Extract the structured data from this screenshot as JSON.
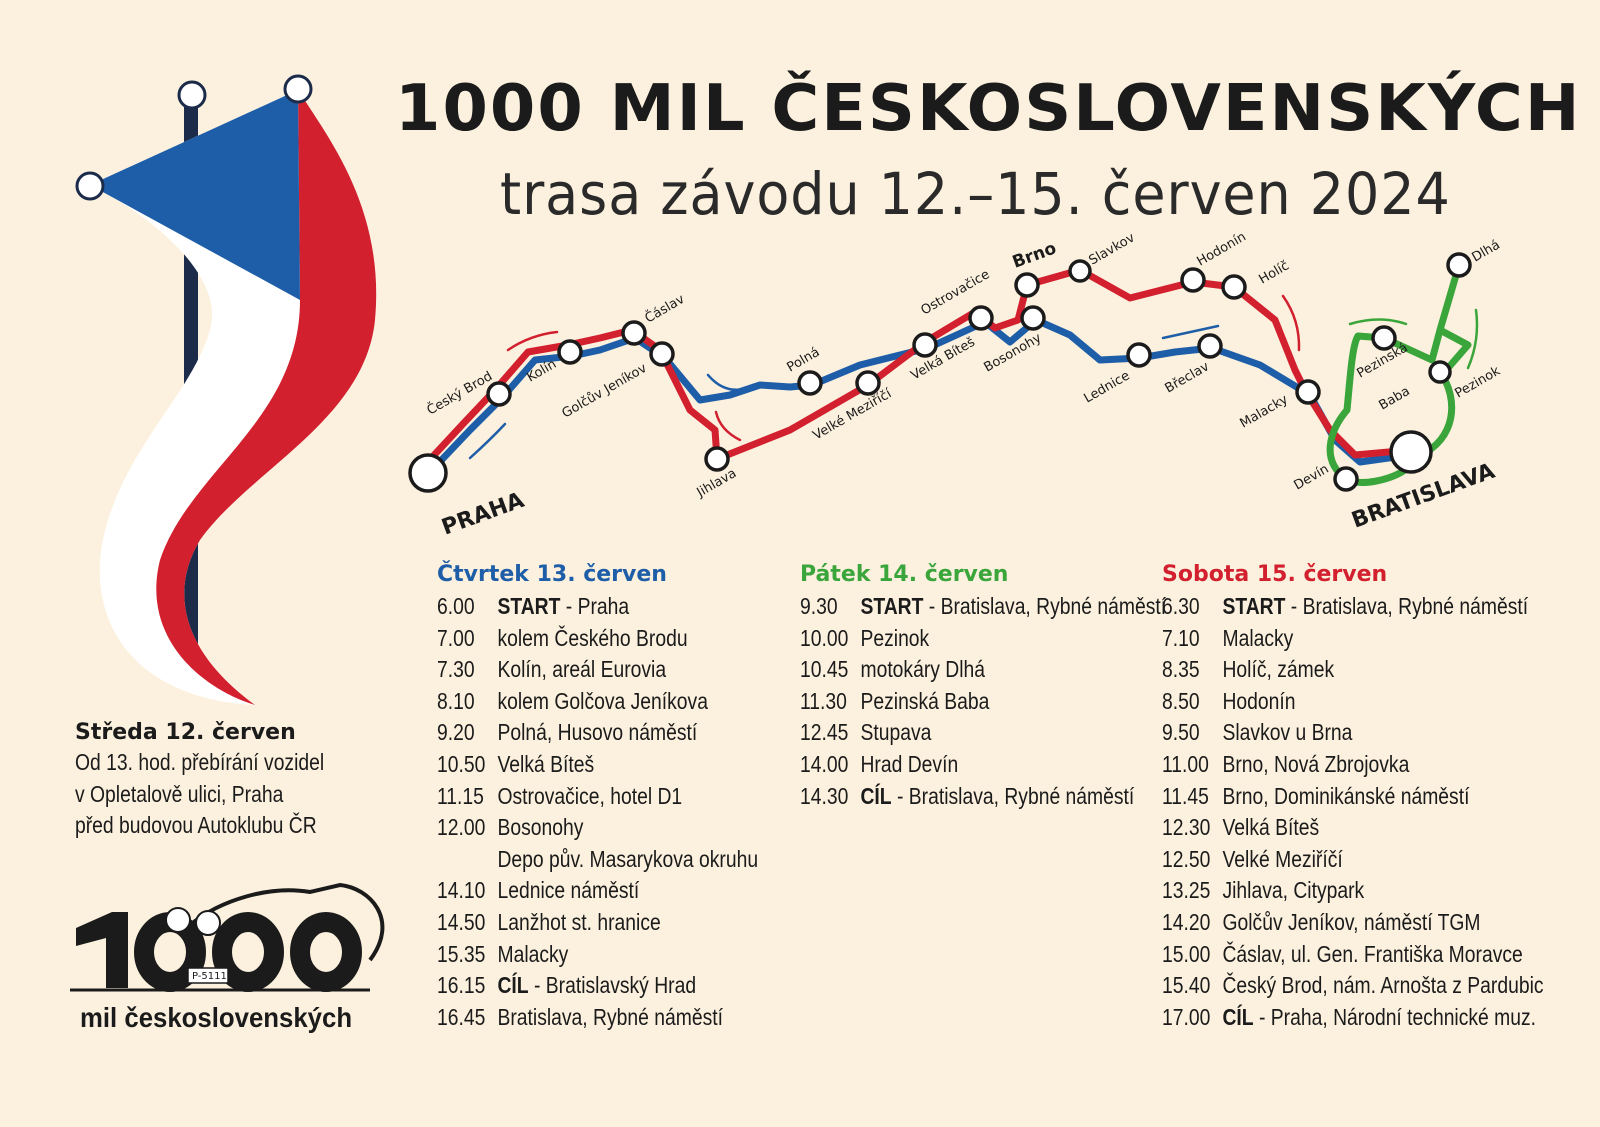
{
  "header": {
    "title": "1000 MIL ČESKOSLOVENSKÝCH",
    "subtitle": "trasa závodu 12.–15. červen 2024"
  },
  "colors": {
    "background": "#fcf1de",
    "day1_blue": "#1e5ea8",
    "day2_green": "#3aa53a",
    "day3_red": "#d2202f",
    "text": "#1b1b1b"
  },
  "map": {
    "stations": {
      "praha": "PRAHA",
      "cesky_brod": "Český Brod",
      "kolin": "Kolín",
      "caslav": "Čáslav",
      "golcuv": "Golčův Jeníkov",
      "polna": "Polná",
      "jihlava": "Jihlava",
      "velke_mezirici": "Velké Meziříčí",
      "velka_bites": "Velká Bíteš",
      "ostrovacice": "Ostrovačice",
      "brno": "Brno",
      "bosonohy": "Bosonohy",
      "slavkov": "Slavkov",
      "hodonin": "Hodonín",
      "holic": "Holíč",
      "lednice": "Lednice",
      "breclav": "Břeclav",
      "malacky": "Malacky",
      "bratislava": "BRATISLAVA",
      "devin": "Devín",
      "pezinska_baba_1": "Pezinská",
      "pezinska_baba_2": "Baba",
      "pezinok": "Pezinok",
      "dlha": "Dlhá"
    },
    "icons": [
      "flag-icon",
      "direction-arrow-icon",
      "station-icon"
    ]
  },
  "wednesday": {
    "heading": "Středa 12. červen",
    "lines": [
      "Od 13. hod. přebírání vozidel",
      "v Opletalově ulici, Praha",
      "před budovou Autoklubu ČR"
    ]
  },
  "schedule": [
    {
      "heading": "Čtvrtek 13. červen",
      "color": "#1e5ea8",
      "rows": [
        {
          "time": "6.00",
          "bold": "START",
          "text": " - Praha"
        },
        {
          "time": "7.00",
          "bold": "",
          "text": "kolem Českého Brodu"
        },
        {
          "time": "7.30",
          "bold": "",
          "text": "Kolín, areál Eurovia"
        },
        {
          "time": "8.10",
          "bold": "",
          "text": "kolem Golčova Jeníkova"
        },
        {
          "time": "9.20",
          "bold": "",
          "text": "Polná, Husovo náměstí"
        },
        {
          "time": "10.50",
          "bold": "",
          "text": "Velká Bíteš"
        },
        {
          "time": "11.15",
          "bold": "",
          "text": "Ostrovačice, hotel D1"
        },
        {
          "time": "12.00",
          "bold": "",
          "text": "Bosonohy"
        },
        {
          "time": "",
          "bold": "",
          "text": "Depo pův. Masarykova okruhu"
        },
        {
          "time": "14.10",
          "bold": "",
          "text": "Lednice náměstí"
        },
        {
          "time": "14.50",
          "bold": "",
          "text": "Lanžhot st. hranice"
        },
        {
          "time": "15.35",
          "bold": "",
          "text": "Malacky"
        },
        {
          "time": "16.15",
          "bold": "CÍL",
          "text": " - Bratislavský Hrad"
        },
        {
          "time": "16.45",
          "bold": "",
          "text": "Bratislava, Rybné náměstí"
        }
      ]
    },
    {
      "heading": "Pátek 14. červen",
      "color": "#3aa53a",
      "rows": [
        {
          "time": "9.30",
          "bold": "START",
          "text": " - Bratislava, Rybné náměstí"
        },
        {
          "time": "10.00",
          "bold": "",
          "text": "Pezinok"
        },
        {
          "time": "10.45",
          "bold": "",
          "text": "motokáry Dlhá"
        },
        {
          "time": "11.30",
          "bold": "",
          "text": "Pezinská Baba"
        },
        {
          "time": "12.45",
          "bold": "",
          "text": "Stupava"
        },
        {
          "time": "14.00",
          "bold": "",
          "text": "Hrad Devín"
        },
        {
          "time": "14.30",
          "bold": "CÍL",
          "text": " - Bratislava, Rybné náměstí"
        }
      ]
    },
    {
      "heading": "Sobota 15. červen",
      "color": "#d2202f",
      "rows": [
        {
          "time": "6.30",
          "bold": "START",
          "text": " - Bratislava, Rybné náměstí"
        },
        {
          "time": "7.10",
          "bold": "",
          "text": "Malacky"
        },
        {
          "time": "8.35",
          "bold": "",
          "text": "Holíč, zámek"
        },
        {
          "time": "8.50",
          "bold": "",
          "text": "Hodonín"
        },
        {
          "time": "9.50",
          "bold": "",
          "text": "Slavkov u Brna"
        },
        {
          "time": "11.00",
          "bold": "",
          "text": "Brno, Nová Zbrojovka"
        },
        {
          "time": "11.45",
          "bold": "",
          "text": "Brno, Dominikánské náměstí"
        },
        {
          "time": "12.30",
          "bold": "",
          "text": "Velká Bíteš"
        },
        {
          "time": "12.50",
          "bold": "",
          "text": "Velké Meziříčí"
        },
        {
          "time": "13.25",
          "bold": "",
          "text": "Jihlava, Citypark"
        },
        {
          "time": "14.20",
          "bold": "",
          "text": "Golčův Jeníkov, náměstí TGM"
        },
        {
          "time": "15.00",
          "bold": "",
          "text": "Čáslav, ul. Gen. Františka Moravce"
        },
        {
          "time": "15.40",
          "bold": "",
          "text": "Český Brod, nám. Arnošta z Pardubic"
        },
        {
          "time": "17.00",
          "bold": "CÍL",
          "text": " - Praha, Národní technické muz."
        }
      ]
    }
  ],
  "logo": {
    "number": "1000",
    "plate": "P-5111",
    "text": "mil československých"
  }
}
